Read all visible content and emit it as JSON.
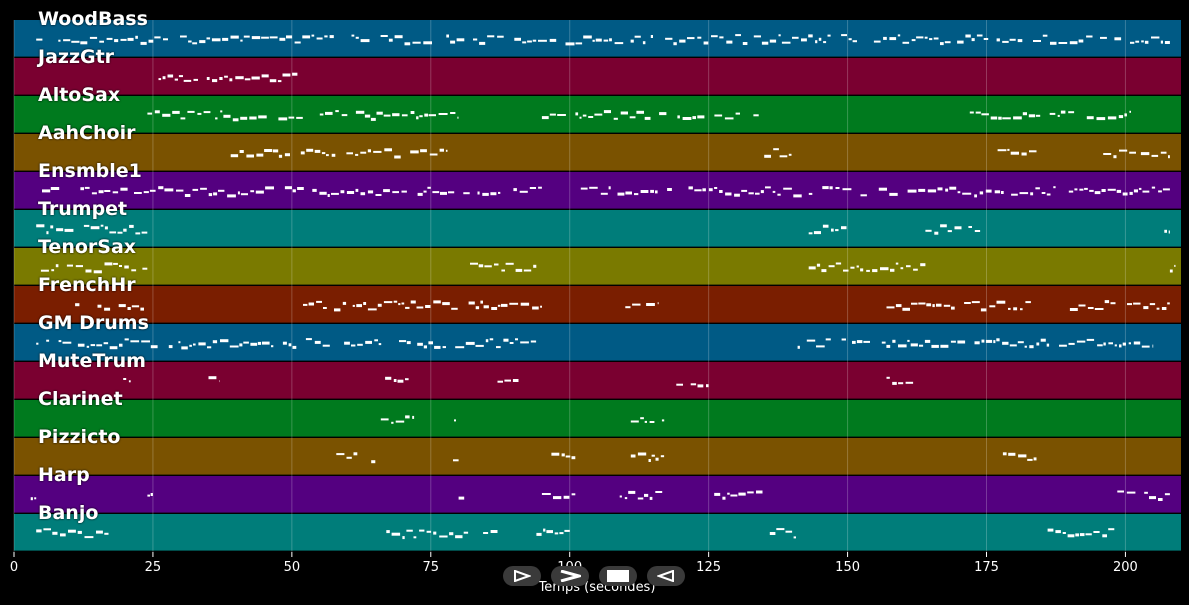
{
  "tracks": [
    {
      "name": "WoodBass",
      "color": "#005a85"
    },
    {
      "name": "JazzGtr",
      "color": "#7a0030"
    },
    {
      "name": "AltoSax",
      "color": "#007a1e"
    },
    {
      "name": "AahChoir",
      "color": "#7a5200"
    },
    {
      "name": "Ensmble1",
      "color": "#540080"
    },
    {
      "name": "Trumpet",
      "color": "#007d7a"
    },
    {
      "name": "TenorSax",
      "color": "#7a7a00"
    },
    {
      "name": "FrenchHr",
      "color": "#7a1e00"
    },
    {
      "name": "GM Drums",
      "color": "#005a85"
    },
    {
      "name": "MuteTrum",
      "color": "#7a0030"
    },
    {
      "name": "Clarinet",
      "color": "#007a1e"
    },
    {
      "name": "Pizzicto",
      "color": "#7a5200"
    },
    {
      "name": "Harp",
      "color": "#540080"
    },
    {
      "name": "Banjo",
      "color": "#007d7a"
    }
  ],
  "xaxis": {
    "label": "Temps (secondes)",
    "ticks": [
      "0",
      "25",
      "50",
      "75",
      "100",
      "125",
      "150",
      "175",
      "200"
    ],
    "range": [
      0,
      210
    ]
  },
  "controls": [
    {
      "name": "play-outline",
      "icon": "play-outline-icon"
    },
    {
      "name": "forward",
      "icon": "forward-chevron-icon"
    },
    {
      "name": "stop",
      "icon": "stop-icon"
    },
    {
      "name": "back",
      "icon": "back-triangle-icon"
    }
  ],
  "chart_data": {
    "type": "piano-roll",
    "xlabel": "Temps (secondes)",
    "xlim": [
      0,
      210
    ],
    "grid": true,
    "tracks": [
      {
        "name": "WoodBass",
        "segments": [
          [
            4,
            208
          ]
        ]
      },
      {
        "name": "JazzGtr",
        "segments": [
          [
            26,
            51
          ]
        ]
      },
      {
        "name": "AltoSax",
        "segments": [
          [
            24,
            80
          ],
          [
            95,
            134
          ],
          [
            172,
            201
          ]
        ]
      },
      {
        "name": "AahChoir",
        "segments": [
          [
            39,
            78
          ],
          [
            135,
            141
          ],
          [
            177,
            184
          ],
          [
            196,
            208
          ]
        ]
      },
      {
        "name": "Ensmble1",
        "segments": [
          [
            4,
            95
          ],
          [
            102,
            208
          ]
        ]
      },
      {
        "name": "Trumpet",
        "segments": [
          [
            4,
            24
          ],
          [
            143,
            150
          ],
          [
            164,
            174
          ],
          [
            207,
            208
          ]
        ]
      },
      {
        "name": "TenorSax",
        "segments": [
          [
            4,
            24
          ],
          [
            81,
            94
          ],
          [
            143,
            164
          ],
          [
            208,
            209
          ]
        ]
      },
      {
        "name": "FrenchHr",
        "segments": [
          [
            11,
            24
          ],
          [
            52,
            95
          ],
          [
            110,
            116
          ],
          [
            157,
            183
          ],
          [
            190,
            208
          ]
        ]
      },
      {
        "name": "GM Drums",
        "segments": [
          [
            4,
            94
          ],
          [
            141,
            205
          ]
        ]
      },
      {
        "name": "MuteTrum",
        "segments": [
          [
            18,
            21
          ],
          [
            35,
            37
          ],
          [
            66,
            71
          ],
          [
            87,
            91
          ],
          [
            118,
            125
          ],
          [
            157,
            163
          ]
        ]
      },
      {
        "name": "Clarinet",
        "segments": [
          [
            66,
            72
          ],
          [
            78,
            80
          ],
          [
            111,
            117
          ]
        ]
      },
      {
        "name": "Pizzicto",
        "segments": [
          [
            58,
            65
          ],
          [
            79,
            80
          ],
          [
            95,
            101
          ],
          [
            111,
            117
          ],
          [
            177,
            184
          ]
        ]
      },
      {
        "name": "Harp",
        "segments": [
          [
            3,
            4
          ],
          [
            24,
            25
          ],
          [
            80,
            81
          ],
          [
            95,
            101
          ],
          [
            109,
            117
          ],
          [
            126,
            135
          ],
          [
            196,
            208
          ]
        ]
      },
      {
        "name": "Banjo",
        "segments": [
          [
            4,
            17
          ],
          [
            67,
            87
          ],
          [
            94,
            100
          ],
          [
            136,
            141
          ],
          [
            186,
            198
          ]
        ]
      }
    ]
  }
}
